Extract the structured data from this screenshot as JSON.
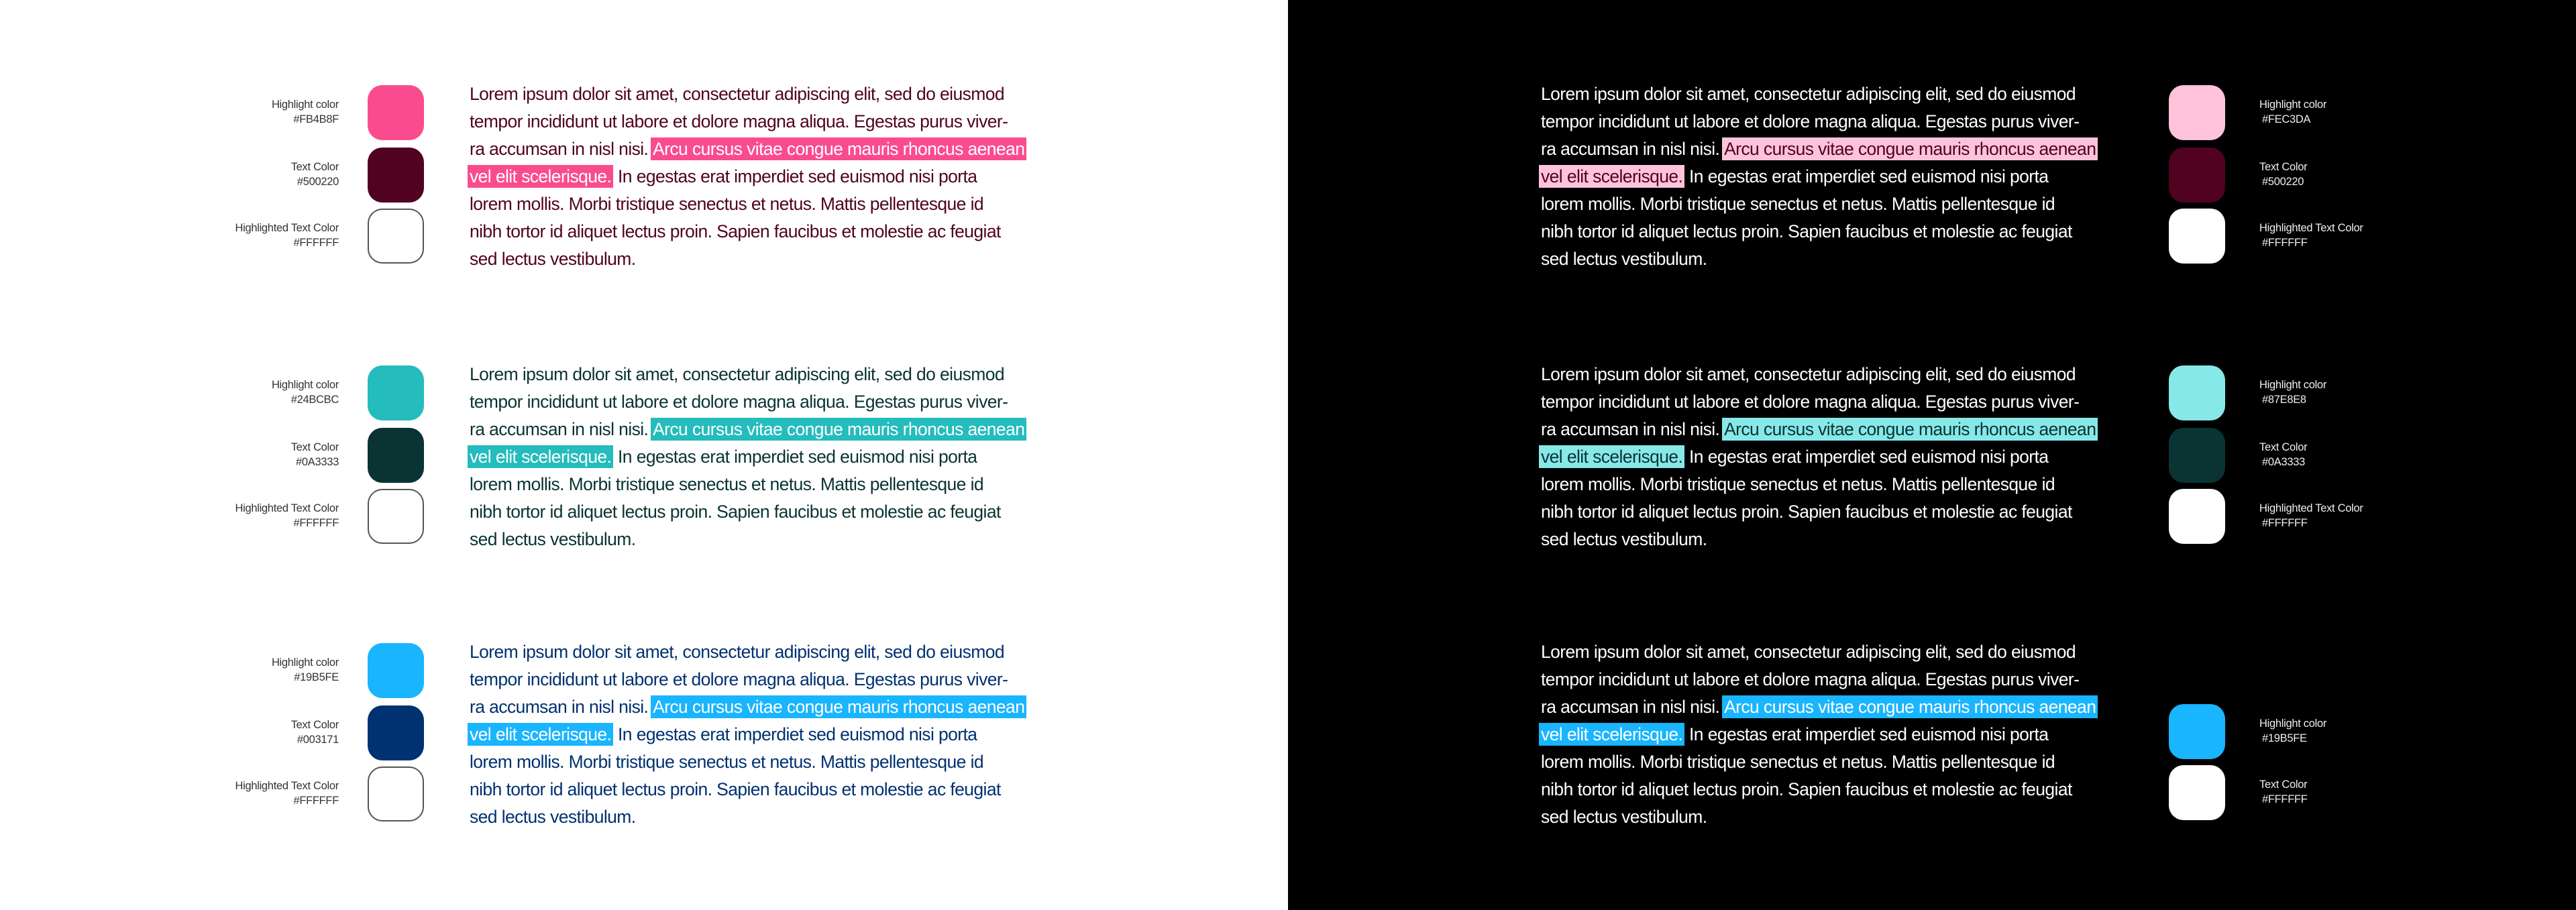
{
  "paragraph": {
    "lines": [
      {
        "before": "Lorem ipsum dolor sit amet, consectetur adipiscing elit, sed do eiusmod",
        "highlight": "",
        "after": ""
      },
      {
        "before": "tempor incididunt ut labore et dolore magna aliqua. Egestas purus viver-",
        "highlight": "",
        "after": ""
      },
      {
        "before": "ra accumsan in nisl nisi. ",
        "highlight": "Arcu cursus vitae congue mauris rhoncus aenean",
        "after": ""
      },
      {
        "before": "",
        "highlight": "vel elit scelerisque.",
        "after": " In egestas erat imperdiet sed euismod nisi porta"
      },
      {
        "before": "lorem mollis. Morbi tristique senectus et netus. Mattis pellentesque id",
        "highlight": "",
        "after": ""
      },
      {
        "before": "nibh tortor id aliquet lectus proin. Sapien faucibus et molestie ac feugiat",
        "highlight": "",
        "after": ""
      },
      {
        "before": "sed lectus vestibulum.",
        "highlight": "",
        "after": ""
      }
    ]
  },
  "light_theme": {
    "background": "#FFFFFF",
    "schemes": [
      {
        "highlight": "#FB4B8F",
        "text": "#500220",
        "highlighted_text": "#FFFFFF",
        "swatches": [
          {
            "label": "Highlight color",
            "hex": "#FB4B8F",
            "color": "#FB4B8F"
          },
          {
            "label": "Text Color",
            "hex": "#500220",
            "color": "#500220"
          },
          {
            "label": "Highlighted Text Color",
            "hex": "#FFFFFF",
            "color": "#FFFFFF"
          }
        ]
      },
      {
        "highlight": "#24BCBC",
        "text": "#0A3333",
        "highlighted_text": "#FFFFFF",
        "swatches": [
          {
            "label": "Highlight color",
            "hex": "#24BCBC",
            "color": "#24BCBC"
          },
          {
            "label": "Text Color",
            "hex": "#0A3333",
            "color": "#0A3333"
          },
          {
            "label": "Highlighted Text Color",
            "hex": "#FFFFFF",
            "color": "#FFFFFF"
          }
        ]
      },
      {
        "highlight": "#19B5FE",
        "text": "#003171",
        "highlighted_text": "#FFFFFF",
        "swatches": [
          {
            "label": "Highlight color",
            "hex": "#19B5FE",
            "color": "#19B5FE"
          },
          {
            "label": "Text Color",
            "hex": "#003171",
            "color": "#003171"
          },
          {
            "label": "Highlighted Text Color",
            "hex": "#FFFFFF",
            "color": "#FFFFFF"
          }
        ]
      }
    ]
  },
  "dark_theme": {
    "background": "#000000",
    "body_text": "#FFFFFF",
    "schemes": [
      {
        "highlight": "#FEC3DA",
        "highlighted_text": "#500220",
        "swatches": [
          {
            "label": "Highlight color",
            "hex": "#FEC3DA",
            "color": "#FEC3DA"
          },
          {
            "label": "Text Color",
            "hex": "#500220",
            "color": "#500220"
          },
          {
            "label": "Highlighted Text Color",
            "hex": "#FFFFFF",
            "color": "#FFFFFF"
          }
        ]
      },
      {
        "highlight": "#87E8E8",
        "highlighted_text": "#0A3333",
        "swatches": [
          {
            "label": "Highlight color",
            "hex": "#87E8E8",
            "color": "#87E8E8"
          },
          {
            "label": "Text Color",
            "hex": "#0A3333",
            "color": "#0A3333"
          },
          {
            "label": "Highlighted Text Color",
            "hex": "#FFFFFF",
            "color": "#FFFFFF"
          }
        ]
      },
      {
        "highlight": "#19B5FE",
        "highlighted_text": "#FFFFFF",
        "swatches": [
          {
            "label": "Highlight color",
            "hex": "#19B5FE",
            "color": "#19B5FE"
          },
          {
            "label": "Text Color",
            "hex": "#FFFFFF",
            "color": "#FFFFFF"
          }
        ]
      }
    ]
  }
}
